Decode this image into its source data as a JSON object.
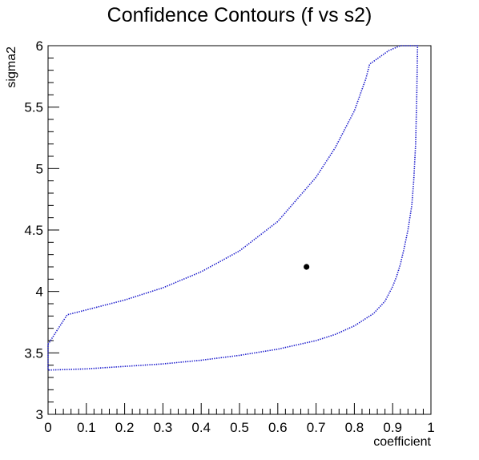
{
  "chart_data": {
    "type": "line",
    "title": "Confidence Contours (f vs s2)",
    "xlabel": "coefficient",
    "ylabel": "sigma2",
    "xlim": [
      0,
      1
    ],
    "ylim": [
      3,
      6
    ],
    "x_ticks": [
      "0",
      "0.1",
      "0.2",
      "0.3",
      "0.4",
      "0.5",
      "0.6",
      "0.7",
      "0.8",
      "0.9",
      "1"
    ],
    "y_ticks": [
      "3",
      "3.5",
      "4",
      "4.5",
      "5",
      "5.5",
      "6"
    ],
    "grid": false,
    "legend": "none",
    "series": [
      {
        "kind": "contour",
        "color": "#1a1acc",
        "style": "dotted",
        "x": [
          0.0,
          0.05,
          0.1,
          0.2,
          0.3,
          0.4,
          0.5,
          0.6,
          0.7,
          0.75,
          0.8,
          0.83,
          0.84,
          0.89,
          0.92,
          0.965,
          0.963,
          0.96,
          0.955,
          0.95,
          0.94,
          0.93,
          0.92,
          0.91,
          0.9,
          0.88,
          0.85,
          0.8,
          0.75,
          0.7,
          0.6,
          0.5,
          0.4,
          0.3,
          0.2,
          0.1,
          0.0,
          0.0
        ],
        "y": [
          3.57,
          3.81,
          3.85,
          3.93,
          4.03,
          4.16,
          4.33,
          4.57,
          4.93,
          5.17,
          5.47,
          5.73,
          5.85,
          5.96,
          6.0,
          6.0,
          5.6,
          5.2,
          4.9,
          4.7,
          4.5,
          4.35,
          4.22,
          4.12,
          4.04,
          3.92,
          3.82,
          3.72,
          3.65,
          3.6,
          3.53,
          3.48,
          3.44,
          3.41,
          3.39,
          3.37,
          3.36,
          3.57
        ]
      }
    ],
    "points": [
      {
        "x": 0.675,
        "y": 4.2,
        "color": "#000000"
      }
    ]
  }
}
